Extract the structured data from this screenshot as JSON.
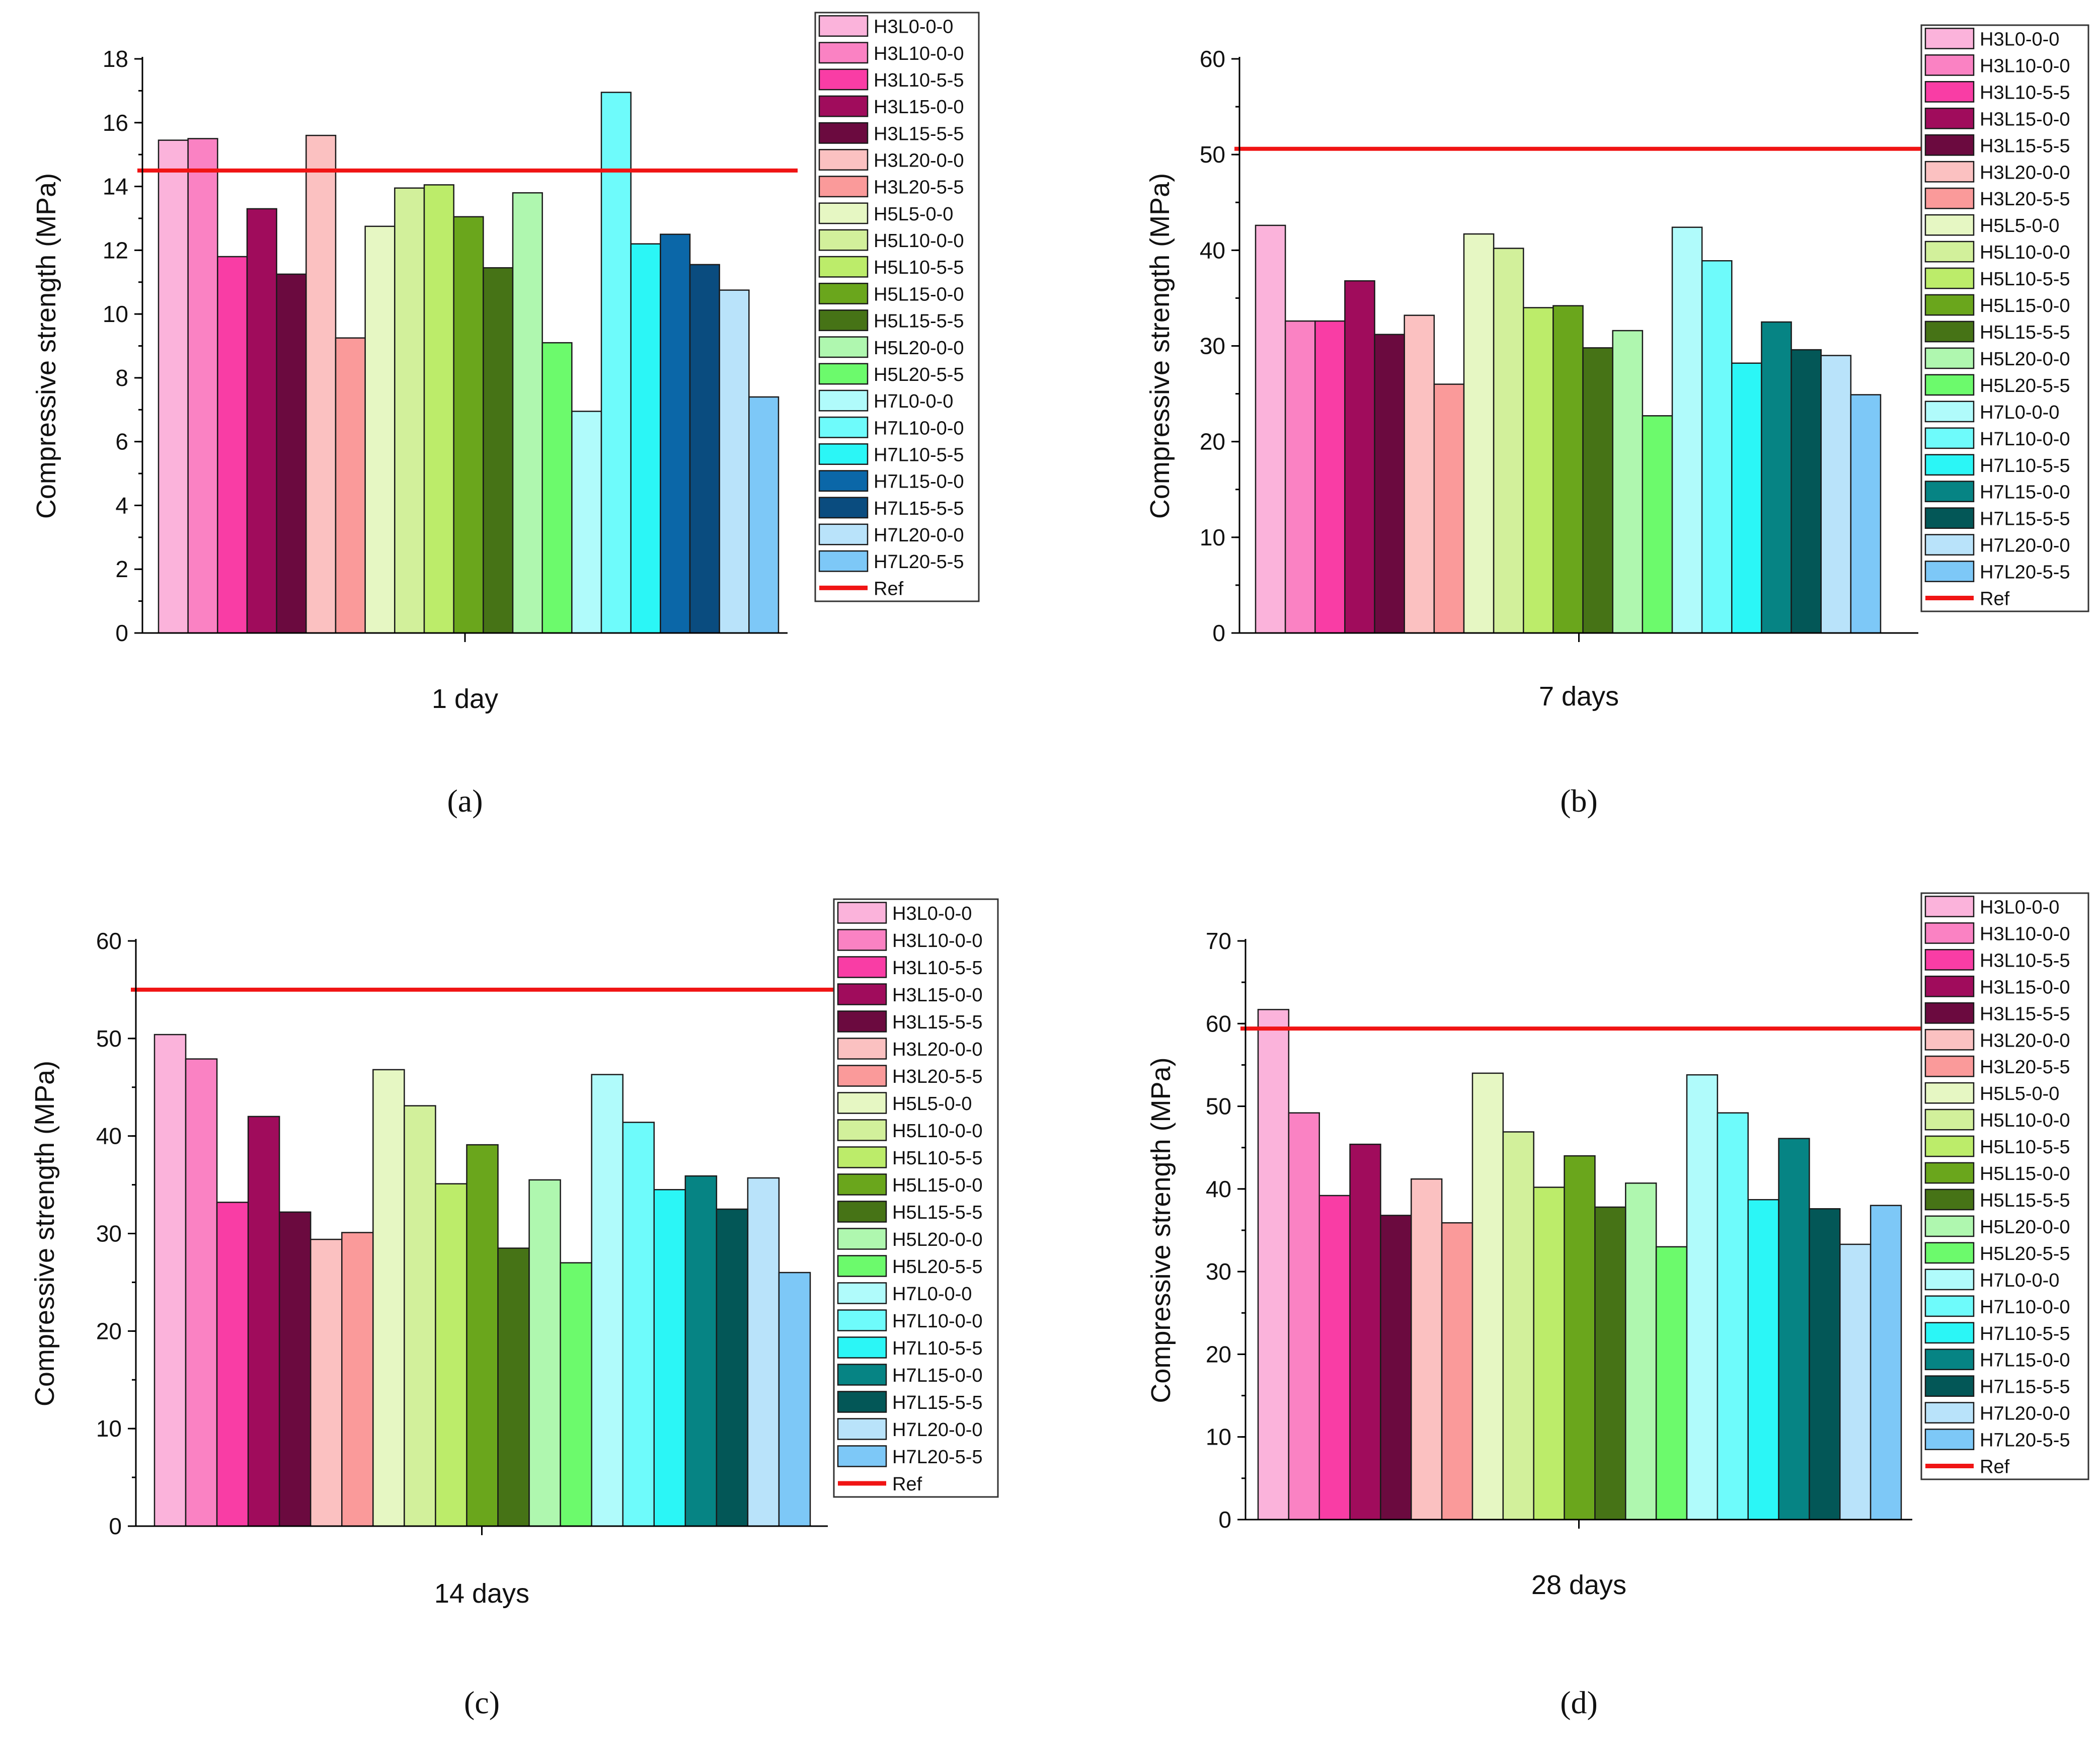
{
  "colors": {
    "H3L0-0-0": "#FBB3DB",
    "H3L10-0-0": "#FA82C3",
    "H3L10-5-5": "#F93DA5",
    "H3L15-0-0": "#A00C5C",
    "H3L15-5-5": "#6B0A3F",
    "H3L20-0-0": "#FBC1C1",
    "H3L20-5-5": "#FA9A9A",
    "H5L5-0-0": "#E6F7C3",
    "H5L10-0-0": "#D2F09B",
    "H5L10-5-5": "#BCEC6A",
    "H5L15-0-0": "#6AA61C",
    "H5L15-5-5": "#467316",
    "H5L20-0-0": "#AFF7AF",
    "H5L20-5-5": "#6CFA6C",
    "H7L0-0-0": "#B0FBFB",
    "H7L10-0-0": "#6EFBFB",
    "H7L10-5-5": "#2BF6F6",
    "H7L15-0-0": "#068484",
    "H7L15-5-5": "#035757",
    "H7L20-0-0": "#B9E3FA",
    "H7L20-5-5": "#7DC8F7",
    "H7L15-0-0_a": "#0B67A8",
    "H7L15-5-5_a": "#0A4C7F",
    "ref_line": "#F01414",
    "axis": "#000000"
  },
  "chart_data": [
    {
      "type": "bar",
      "panel": "(a)",
      "xlabel": "1 day",
      "ylabel": "Compressive strength (MPa)",
      "ylim": [
        0,
        18
      ],
      "yticks": [
        0,
        2,
        4,
        6,
        8,
        10,
        12,
        14,
        16,
        18
      ],
      "ref_value": 14.5,
      "series": [
        {
          "name": "H3L0-0-0",
          "value": 15.45
        },
        {
          "name": "H3L10-0-0",
          "value": 15.5
        },
        {
          "name": "H3L10-5-5",
          "value": 11.8
        },
        {
          "name": "H3L15-0-0",
          "value": 13.3
        },
        {
          "name": "H3L15-5-5",
          "value": 11.25
        },
        {
          "name": "H3L20-0-0",
          "value": 15.6
        },
        {
          "name": "H3L20-5-5",
          "value": 9.25
        },
        {
          "name": "H5L5-0-0",
          "value": 12.75
        },
        {
          "name": "H5L10-0-0",
          "value": 13.95
        },
        {
          "name": "H5L10-5-5",
          "value": 14.05
        },
        {
          "name": "H5L15-0-0",
          "value": 13.05
        },
        {
          "name": "H5L15-5-5",
          "value": 11.45
        },
        {
          "name": "H5L20-0-0",
          "value": 13.8
        },
        {
          "name": "H5L20-5-5",
          "value": 9.1
        },
        {
          "name": "H7L0-0-0",
          "value": 6.95
        },
        {
          "name": "H7L10-0-0",
          "value": 16.95
        },
        {
          "name": "H7L10-5-5",
          "value": 12.2
        },
        {
          "name": "H7L15-0-0",
          "value": 12.5
        },
        {
          "name": "H7L15-5-5",
          "value": 11.55
        },
        {
          "name": "H7L20-0-0",
          "value": 10.75
        },
        {
          "name": "H7L20-5-5",
          "value": 7.4
        }
      ],
      "legend_ref": "Ref"
    },
    {
      "type": "bar",
      "panel": "(b)",
      "xlabel": "7 days",
      "ylabel": "Compressive strength (MPa)",
      "ylim": [
        0,
        60
      ],
      "yticks": [
        0,
        10,
        20,
        30,
        40,
        50,
        60
      ],
      "ref_value": 50.6,
      "series": [
        {
          "name": "H3L0-0-0",
          "value": 42.6
        },
        {
          "name": "H3L10-0-0",
          "value": 32.6
        },
        {
          "name": "H3L10-5-5",
          "value": 32.6
        },
        {
          "name": "H3L15-0-0",
          "value": 36.8
        },
        {
          "name": "H3L15-5-5",
          "value": 31.2
        },
        {
          "name": "H3L20-0-0",
          "value": 33.2
        },
        {
          "name": "H3L20-5-5",
          "value": 26.0
        },
        {
          "name": "H5L5-0-0",
          "value": 41.7
        },
        {
          "name": "H5L10-0-0",
          "value": 40.2
        },
        {
          "name": "H5L10-5-5",
          "value": 34.0
        },
        {
          "name": "H5L15-0-0",
          "value": 34.2
        },
        {
          "name": "H5L15-5-5",
          "value": 29.8
        },
        {
          "name": "H5L20-0-0",
          "value": 31.6
        },
        {
          "name": "H5L20-5-5",
          "value": 22.7
        },
        {
          "name": "H7L0-0-0",
          "value": 42.4
        },
        {
          "name": "H7L10-0-0",
          "value": 38.9
        },
        {
          "name": "H7L10-5-5",
          "value": 28.2
        },
        {
          "name": "H7L15-0-0",
          "value": 32.5
        },
        {
          "name": "H7L15-5-5",
          "value": 29.6
        },
        {
          "name": "H7L20-0-0",
          "value": 29.0
        },
        {
          "name": "H7L20-5-5",
          "value": 24.9
        }
      ],
      "legend_ref": "Ref"
    },
    {
      "type": "bar",
      "panel": "(c)",
      "xlabel": "14 days",
      "ylabel": "Compressive strength (MPa)",
      "ylim": [
        0,
        60
      ],
      "yticks": [
        0,
        10,
        20,
        30,
        40,
        50,
        60
      ],
      "ref_value": 55.0,
      "series": [
        {
          "name": "H3L0-0-0",
          "value": 50.4
        },
        {
          "name": "H3L10-0-0",
          "value": 47.9
        },
        {
          "name": "H3L10-5-5",
          "value": 33.2
        },
        {
          "name": "H3L15-0-0",
          "value": 42.0
        },
        {
          "name": "H3L15-5-5",
          "value": 32.2
        },
        {
          "name": "H3L20-0-0",
          "value": 29.4
        },
        {
          "name": "H3L20-5-5",
          "value": 30.1
        },
        {
          "name": "H5L5-0-0",
          "value": 46.8
        },
        {
          "name": "H5L10-0-0",
          "value": 43.1
        },
        {
          "name": "H5L10-5-5",
          "value": 35.1
        },
        {
          "name": "H5L15-0-0",
          "value": 39.1
        },
        {
          "name": "H5L15-5-5",
          "value": 28.5
        },
        {
          "name": "H5L20-0-0",
          "value": 35.5
        },
        {
          "name": "H5L20-5-5",
          "value": 27.0
        },
        {
          "name": "H7L0-0-0",
          "value": 46.3
        },
        {
          "name": "H7L10-0-0",
          "value": 41.4
        },
        {
          "name": "H7L10-5-5",
          "value": 34.5
        },
        {
          "name": "H7L15-0-0",
          "value": 35.9
        },
        {
          "name": "H7L15-5-5",
          "value": 32.5
        },
        {
          "name": "H7L20-0-0",
          "value": 35.7
        },
        {
          "name": "H7L20-5-5",
          "value": 26.0
        }
      ],
      "legend_ref": "Ref"
    },
    {
      "type": "bar",
      "panel": "(d)",
      "xlabel": "28 days",
      "ylabel": "Compressive strength (MPa)",
      "ylim": [
        0,
        70
      ],
      "yticks": [
        0,
        10,
        20,
        30,
        40,
        50,
        60,
        70
      ],
      "ref_value": 59.4,
      "series": [
        {
          "name": "H3L0-0-0",
          "value": 61.7
        },
        {
          "name": "H3L10-0-0",
          "value": 49.2
        },
        {
          "name": "H3L10-5-5",
          "value": 39.2
        },
        {
          "name": "H3L15-0-0",
          "value": 45.4
        },
        {
          "name": "H3L15-5-5",
          "value": 36.8
        },
        {
          "name": "H3L20-0-0",
          "value": 41.2
        },
        {
          "name": "H3L20-5-5",
          "value": 35.9
        },
        {
          "name": "H5L5-0-0",
          "value": 54.0
        },
        {
          "name": "H5L10-0-0",
          "value": 46.9
        },
        {
          "name": "H5L10-5-5",
          "value": 40.2
        },
        {
          "name": "H5L15-0-0",
          "value": 44.0
        },
        {
          "name": "H5L15-5-5",
          "value": 37.8
        },
        {
          "name": "H5L20-0-0",
          "value": 40.7
        },
        {
          "name": "H5L20-5-5",
          "value": 33.0
        },
        {
          "name": "H7L0-0-0",
          "value": 53.8
        },
        {
          "name": "H7L10-0-0",
          "value": 49.2
        },
        {
          "name": "H7L10-5-5",
          "value": 38.7
        },
        {
          "name": "H7L15-0-0",
          "value": 46.1
        },
        {
          "name": "H7L15-5-5",
          "value": 37.6
        },
        {
          "name": "H7L20-0-0",
          "value": 33.3
        },
        {
          "name": "H7L20-5-5",
          "value": 38.0
        }
      ],
      "legend_ref": "Ref"
    }
  ]
}
